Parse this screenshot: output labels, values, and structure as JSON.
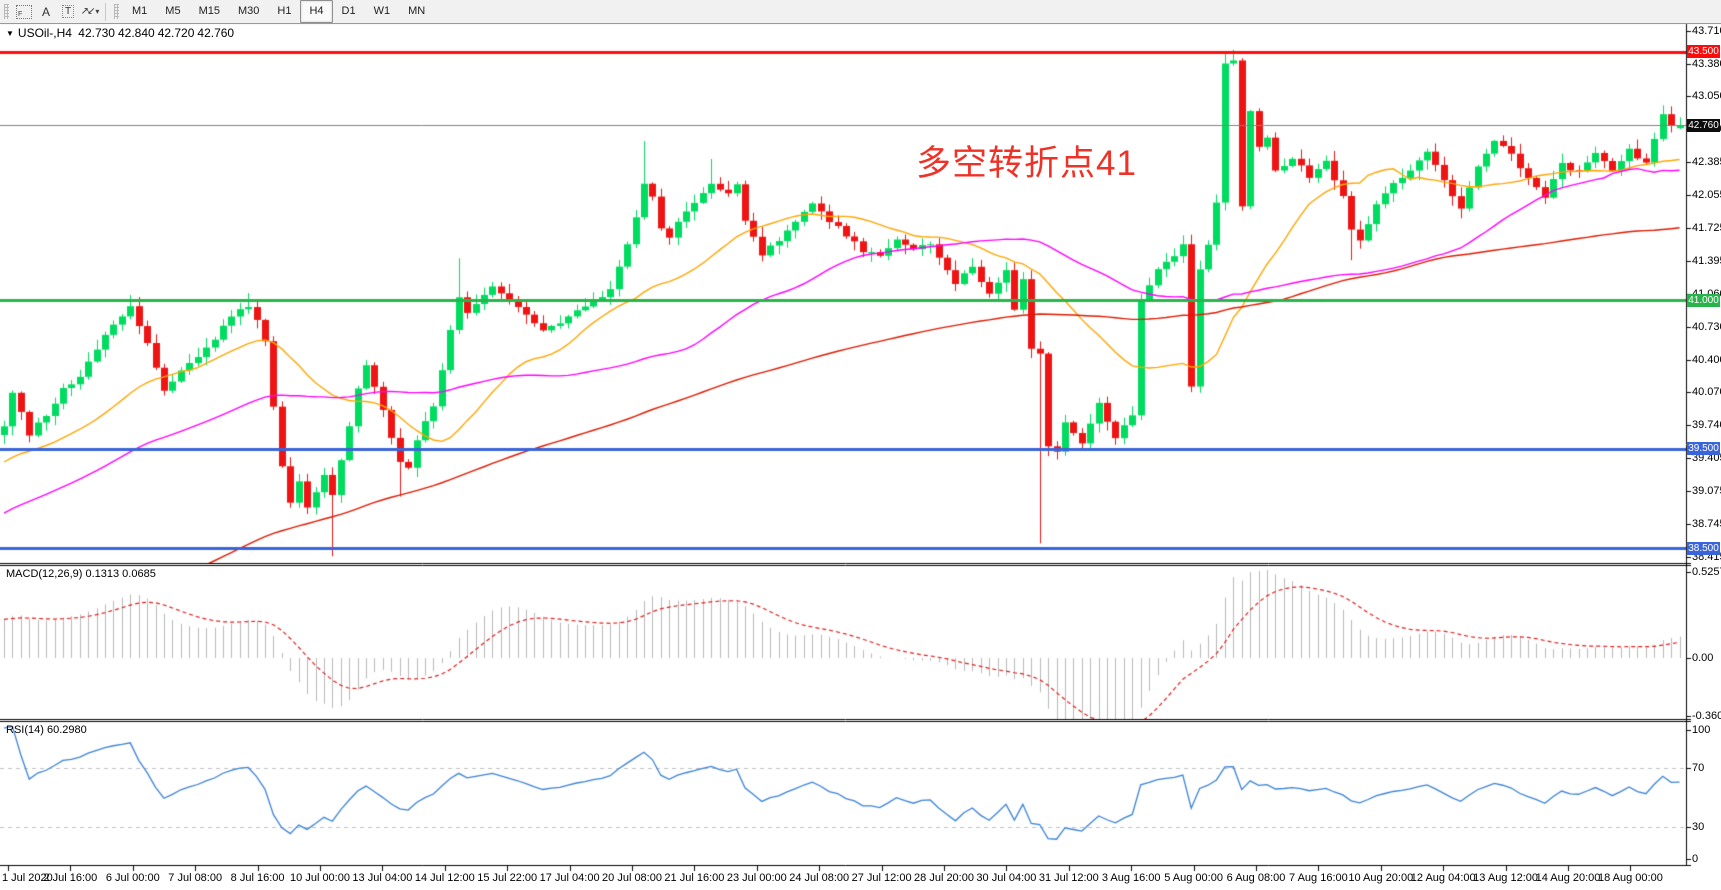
{
  "toolbar": {
    "icons": {
      "grid_f_glyph": "F",
      "text_label_glyph": "A",
      "text_box_glyph": "T",
      "arrows_glyph": "↗↙",
      "caret_glyph": "▾"
    },
    "buttons": [
      {
        "label": "M1"
      },
      {
        "label": "M5"
      },
      {
        "label": "M15"
      },
      {
        "label": "M30"
      },
      {
        "label": "H1"
      },
      {
        "label": "H4"
      },
      {
        "label": "D1"
      },
      {
        "label": "W1"
      },
      {
        "label": "MN"
      }
    ],
    "active_timeframe": "H4"
  },
  "symbol_line": {
    "triangle": "▼",
    "symbol": "USOil-,H4",
    "open": "42.730",
    "high": "42.840",
    "low": "42.720",
    "close": "42.760"
  },
  "annotation": {
    "text": "多空转折点41",
    "color": "#ef3228"
  },
  "chart_data": {
    "type": "candlestick",
    "symbol": "USOil-",
    "timeframe": "H4",
    "y_axis": {
      "ticks": [
        "43.710",
        "43.380",
        "43.050",
        "42.720",
        "42.385",
        "42.055",
        "41.725",
        "41.395",
        "41.060",
        "40.730",
        "40.400",
        "40.070",
        "39.740",
        "39.405",
        "39.075",
        "38.745",
        "38.415"
      ]
    },
    "badges": [
      {
        "label": "43.500",
        "price": 43.5,
        "bg": "#fd0b0b"
      },
      {
        "label": "42.760",
        "price": 42.76,
        "bg": "#0d0d0d"
      },
      {
        "label": "41.000",
        "price": 41.0,
        "bg": "#28b44b"
      },
      {
        "label": "39.500",
        "price": 39.5,
        "bg": "#3a64d9"
      },
      {
        "label": "38.500",
        "price": 38.5,
        "bg": "#3a64d9"
      }
    ],
    "hlines": [
      {
        "price": 43.5,
        "color": "#fd0b0b",
        "width": 3
      },
      {
        "price": 42.76,
        "color": "#808080",
        "width": 1
      },
      {
        "price": 41.0,
        "color": "#28b44b",
        "width": 3
      },
      {
        "price": 39.5,
        "color": "#3a64d9",
        "width": 3
      },
      {
        "price": 38.5,
        "color": "#3a64d9",
        "width": 3
      }
    ],
    "x_axis": {
      "labels": [
        "1 Jul 2020",
        "2 Jul 16:00",
        "6 Jul 00:00",
        "7 Jul 08:00",
        "8 Jul 16:00",
        "10 Jul 00:00",
        "13 Jul 04:00",
        "14 Jul 12:00",
        "15 Jul 22:00",
        "17 Jul 04:00",
        "20 Jul 08:00",
        "21 Jul 16:00",
        "23 Jul 00:00",
        "24 Jul 08:00",
        "27 Jul 12:00",
        "28 Jul 20:00",
        "30 Jul 04:00",
        "31 Jul 12:00",
        "3 Aug 16:00",
        "5 Aug 00:00",
        "6 Aug 08:00",
        "7 Aug 16:00",
        "10 Aug 20:00",
        "12 Aug 04:00",
        "13 Aug 12:00",
        "14 Aug 20:00",
        "18 Aug 00:00"
      ]
    },
    "candles": {
      "count": 200,
      "up_color": "#00dc5f",
      "down_color": "#ee1414",
      "keypoints": [
        [
          0,
          39.75
        ],
        [
          1,
          40.05
        ],
        [
          3,
          39.65
        ],
        [
          5,
          39.85
        ],
        [
          7,
          40.1
        ],
        [
          9,
          40.25
        ],
        [
          11,
          40.5
        ],
        [
          13,
          40.75
        ],
        [
          15,
          40.92
        ],
        [
          17,
          40.55
        ],
        [
          19,
          40.1
        ],
        [
          21,
          40.3
        ],
        [
          23,
          40.45
        ],
        [
          25,
          40.62
        ],
        [
          27,
          40.85
        ],
        [
          29,
          40.95
        ],
        [
          31,
          40.6
        ],
        [
          32,
          39.95
        ],
        [
          33,
          39.35
        ],
        [
          34,
          38.95
        ],
        [
          35,
          39.15
        ],
        [
          36,
          38.92
        ],
        [
          37,
          39.05
        ],
        [
          38,
          39.22
        ],
        [
          39,
          39.05
        ],
        [
          40,
          39.4
        ],
        [
          41,
          39.75
        ],
        [
          42,
          40.1
        ],
        [
          43,
          40.35
        ],
        [
          44,
          40.15
        ],
        [
          45,
          39.9
        ],
        [
          46,
          39.6
        ],
        [
          47,
          39.35
        ],
        [
          48,
          39.32
        ],
        [
          49,
          39.6
        ],
        [
          51,
          39.95
        ],
        [
          52,
          40.3
        ],
        [
          53,
          40.7
        ],
        [
          54,
          41.05
        ],
        [
          55,
          40.85
        ],
        [
          56,
          40.95
        ],
        [
          58,
          41.15
        ],
        [
          60,
          41.0
        ],
        [
          62,
          40.85
        ],
        [
          64,
          40.7
        ],
        [
          66,
          40.78
        ],
        [
          68,
          40.9
        ],
        [
          70,
          40.98
        ],
        [
          72,
          41.1
        ],
        [
          74,
          41.55
        ],
        [
          75,
          41.85
        ],
        [
          76,
          42.15
        ],
        [
          77,
          42.05
        ],
        [
          78,
          41.7
        ],
        [
          79,
          41.65
        ],
        [
          80,
          41.8
        ],
        [
          82,
          42.0
        ],
        [
          84,
          42.15
        ],
        [
          86,
          42.05
        ],
        [
          87,
          42.18
        ],
        [
          88,
          41.8
        ],
        [
          90,
          41.45
        ],
        [
          92,
          41.6
        ],
        [
          94,
          41.8
        ],
        [
          96,
          41.95
        ],
        [
          98,
          41.8
        ],
        [
          100,
          41.65
        ],
        [
          102,
          41.5
        ],
        [
          104,
          41.45
        ],
        [
          106,
          41.62
        ],
        [
          108,
          41.52
        ],
        [
          110,
          41.55
        ],
        [
          113,
          41.15
        ],
        [
          115,
          41.35
        ],
        [
          117,
          41.05
        ],
        [
          119,
          41.3
        ],
        [
          120,
          40.9
        ],
        [
          121,
          41.2
        ],
        [
          122,
          40.5
        ],
        [
          123,
          40.45
        ],
        [
          124,
          39.55
        ],
        [
          125,
          39.45
        ],
        [
          126,
          39.75
        ],
        [
          128,
          39.55
        ],
        [
          130,
          39.95
        ],
        [
          132,
          39.6
        ],
        [
          134,
          39.85
        ],
        [
          135,
          41.0
        ],
        [
          136,
          41.15
        ],
        [
          137,
          41.3
        ],
        [
          139,
          41.45
        ],
        [
          140,
          41.55
        ],
        [
          141,
          40.15
        ],
        [
          142,
          41.3
        ],
        [
          143,
          41.55
        ],
        [
          144,
          42.0
        ],
        [
          145,
          43.38
        ],
        [
          146,
          43.42
        ],
        [
          147,
          41.95
        ],
        [
          148,
          42.92
        ],
        [
          149,
          42.55
        ],
        [
          150,
          42.65
        ],
        [
          151,
          42.3
        ],
        [
          153,
          42.42
        ],
        [
          155,
          42.25
        ],
        [
          157,
          42.38
        ],
        [
          159,
          42.05
        ],
        [
          160,
          41.72
        ],
        [
          161,
          41.62
        ],
        [
          163,
          41.95
        ],
        [
          165,
          42.18
        ],
        [
          167,
          42.32
        ],
        [
          169,
          42.48
        ],
        [
          171,
          42.22
        ],
        [
          173,
          41.92
        ],
        [
          175,
          42.32
        ],
        [
          177,
          42.62
        ],
        [
          179,
          42.48
        ],
        [
          181,
          42.22
        ],
        [
          183,
          42.02
        ],
        [
          185,
          42.38
        ],
        [
          187,
          42.28
        ],
        [
          189,
          42.48
        ],
        [
          191,
          42.32
        ],
        [
          193,
          42.52
        ],
        [
          195,
          42.38
        ],
        [
          196,
          42.62
        ],
        [
          197,
          42.88
        ],
        [
          198,
          42.73
        ],
        [
          199,
          42.76
        ]
      ],
      "prehistory": [
        [
          -120,
          34.8
        ],
        [
          -70,
          36.8
        ],
        [
          -40,
          38.3
        ],
        [
          -20,
          39.1
        ],
        [
          -5,
          39.5
        ],
        [
          -1,
          39.62
        ]
      ],
      "overrides": {
        "15": {
          "h": 41.05
        },
        "29": {
          "h": 41.07
        },
        "39": {
          "l": 38.42
        },
        "47": {
          "l": 39.02
        },
        "54": {
          "h": 41.42
        },
        "76": {
          "h": 42.6
        },
        "84": {
          "h": 42.42
        },
        "123": {
          "l": 38.55
        },
        "145": {
          "h": 43.5
        },
        "146": {
          "h": 43.52
        },
        "147": {
          "l": 41.9
        },
        "160": {
          "l": 41.4
        },
        "198": {
          "h": 42.95
        },
        "199": {
          "o": 42.73,
          "h": 42.84,
          "l": 42.72,
          "c": 42.76
        }
      }
    },
    "mas": [
      {
        "period": 21,
        "color": "#ffa500"
      },
      {
        "period": 50,
        "color": "#ff00ff"
      },
      {
        "period": 120,
        "color": "#dd1a00"
      }
    ],
    "macd": {
      "label": "MACD(12,26,9)",
      "values_text": "0.1313 0.0685",
      "params": [
        12,
        26,
        9
      ],
      "axis": [
        "0.5257",
        "0.00",
        "-0.3603"
      ],
      "axis_max": 0.5257,
      "axis_min": -0.3603,
      "hist_color": "#b9b9b9",
      "signal_color": "#e02020"
    },
    "rsi": {
      "label": "RSI(14)",
      "value_text": "60.2980",
      "period": 14,
      "levels": [
        70,
        30
      ],
      "axis": [
        "100",
        "70",
        "30",
        "0"
      ],
      "line_color": "#3b82d6",
      "level_color": "#c0c0c0"
    }
  }
}
